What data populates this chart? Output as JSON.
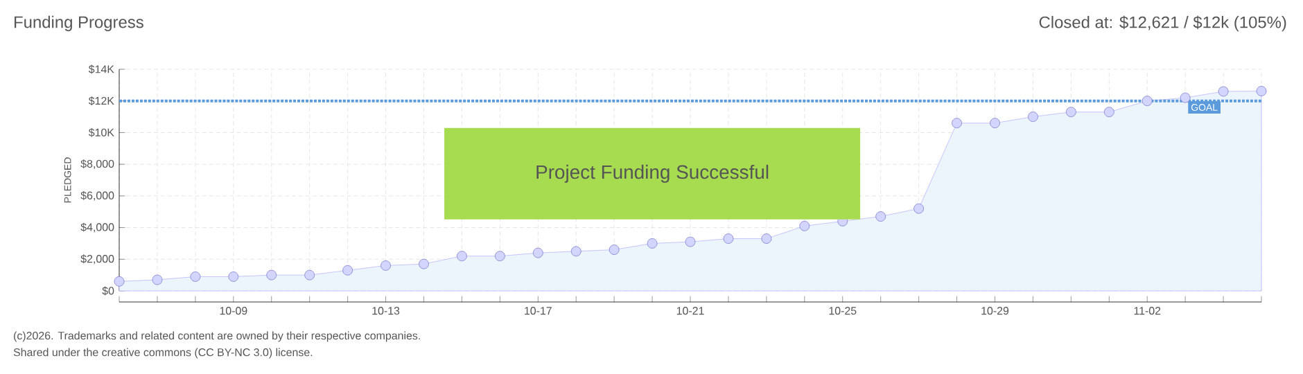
{
  "chart_data": {
    "type": "area",
    "title": "Funding Progress",
    "subtitle": "Closed at: $12,621 / $12k (105%)",
    "ylabel": "PLEDGED",
    "annotations": [
      "Project Funding Successful",
      "(c)2026. Trademarks and related content are owned by their respective companies.",
      "Shared under the creative commons (CC BY-NC 3.0) license."
    ],
    "categories": [
      null,
      null,
      null,
      "10-09",
      null,
      null,
      null,
      "10-13",
      null,
      null,
      null,
      "10-17",
      null,
      null,
      null,
      "10-21",
      null,
      null,
      null,
      "10-25",
      null,
      null,
      null,
      "10-29",
      null,
      null,
      null,
      "11-02",
      null,
      null,
      null
    ],
    "series": [
      {
        "color": "#ecf4fc",
        "values": [
          600,
          700,
          900,
          900,
          1000,
          1000,
          1300,
          1600,
          1700,
          2200,
          2200,
          2400,
          2500,
          2600,
          3000,
          3100,
          3300,
          3300,
          4100,
          4400,
          4700,
          5200,
          10600,
          10600,
          11000,
          11300,
          11300,
          12000,
          12200,
          12600,
          12621
        ]
      }
    ],
    "ylim": [
      0,
      14000
    ],
    "yticks": [
      {
        "value": 0,
        "label": "$0"
      },
      {
        "value": 2000,
        "label": "$2,000"
      },
      {
        "value": 4000,
        "label": "$4,000"
      },
      {
        "value": 6000,
        "label": "$6,000"
      },
      {
        "value": 8000,
        "label": "$8,000"
      },
      {
        "value": 10000,
        "label": "$10K"
      },
      {
        "value": 12000,
        "label": "$12K"
      },
      {
        "value": 14000,
        "label": "$14K"
      }
    ],
    "ref_lines": [
      {
        "axis": "y",
        "value": 12000,
        "label": "GOAL",
        "color": "#5b9bdc",
        "line_style": "dotted"
      }
    ],
    "grid": true,
    "marker": "circle"
  }
}
